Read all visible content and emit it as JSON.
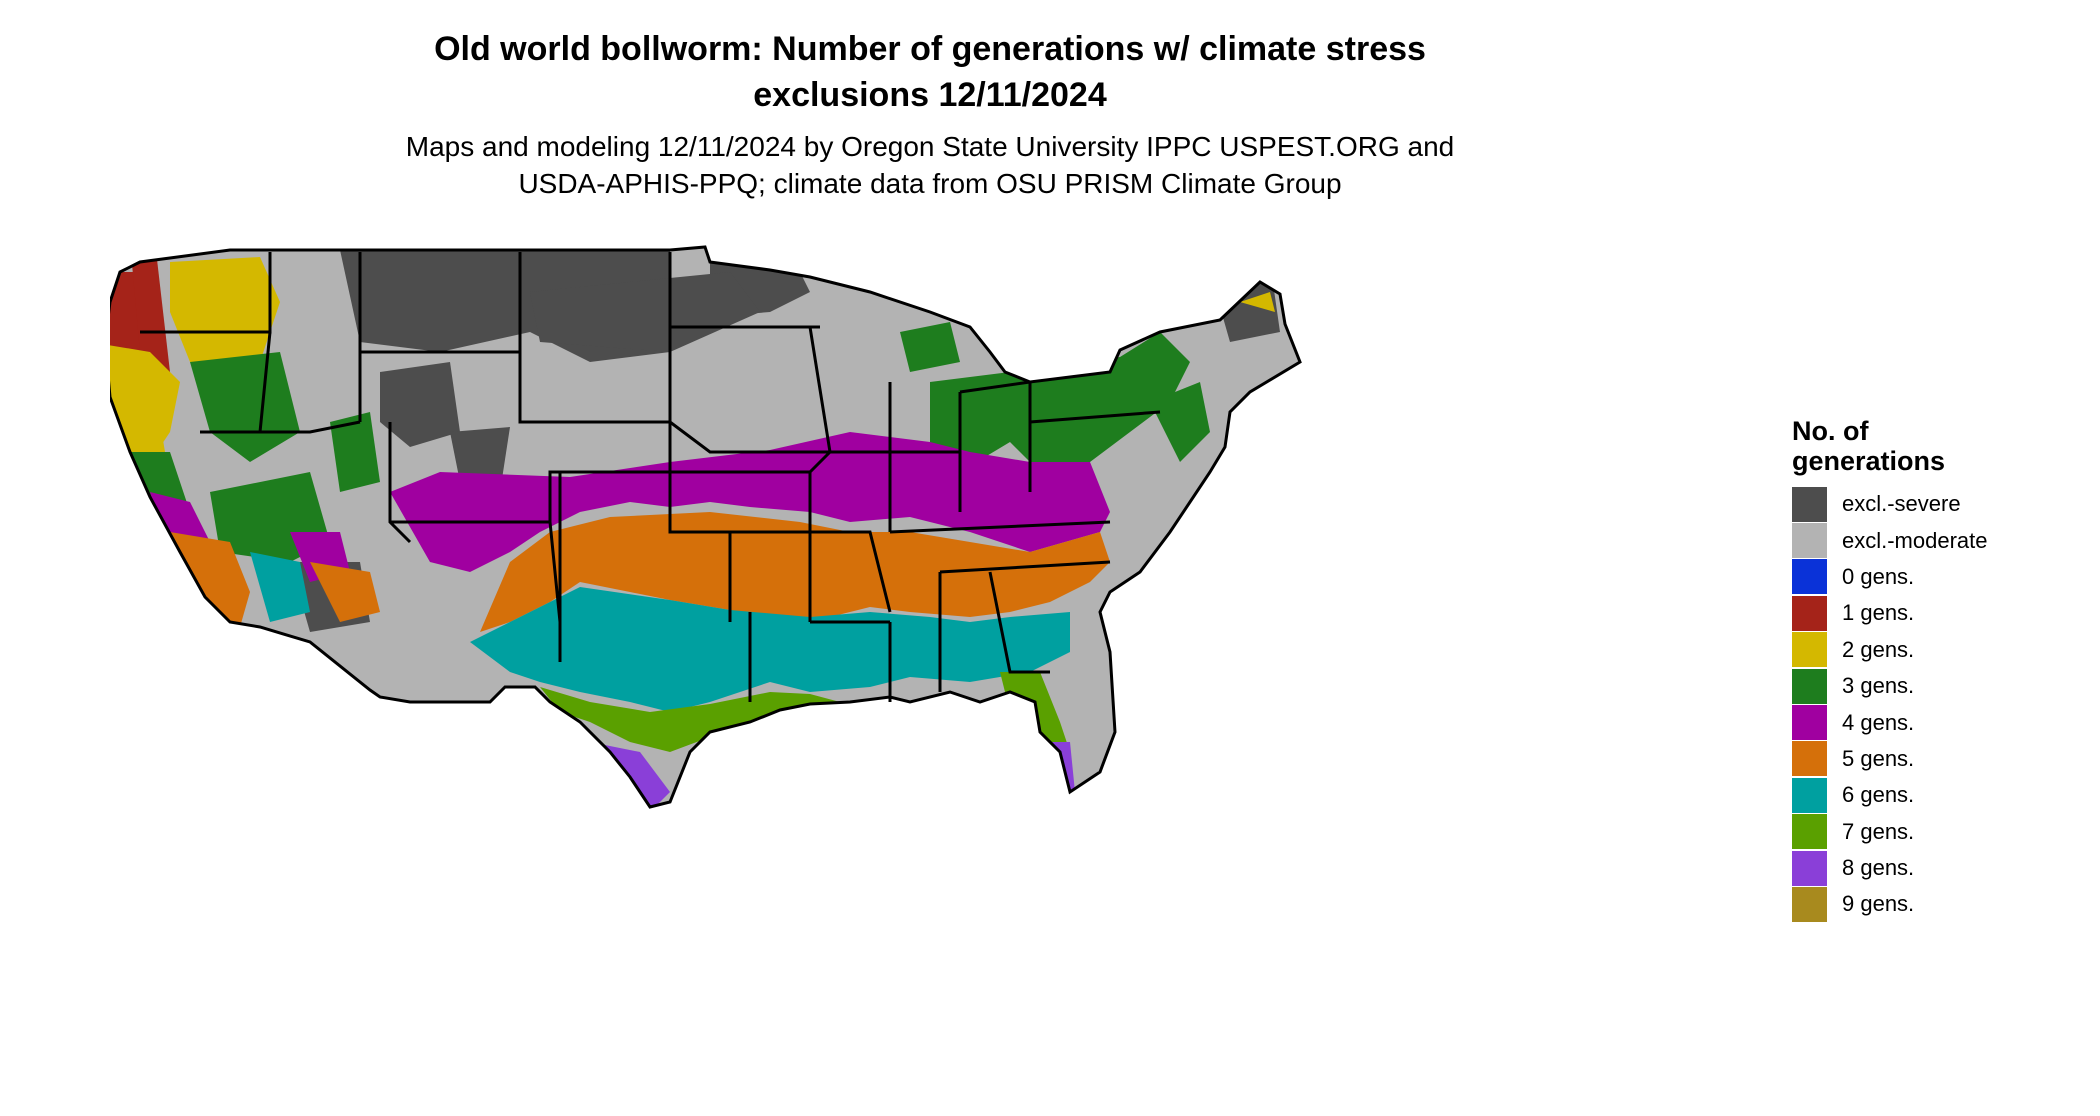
{
  "title_line1": "Old world bollworm: Number of generations w/ climate stress",
  "title_line2": "exclusions 12/11/2024",
  "subtitle_line1": "Maps and modeling 12/11/2024 by Oregon State University IPPC USPEST.ORG and",
  "subtitle_line2": "USDA-APHIS-PPQ; climate data from OSU PRISM Climate Group",
  "legend": {
    "title_line1": "No. of",
    "title_line2": "generations",
    "items": [
      {
        "label": "excl.-severe",
        "color": "#4d4d4d"
      },
      {
        "label": "excl.-moderate",
        "color": "#b3b3b3"
      },
      {
        "label": "0 gens.",
        "color": "#0a32d8"
      },
      {
        "label": "1 gens.",
        "color": "#a52319"
      },
      {
        "label": "2 gens.",
        "color": "#d4b800"
      },
      {
        "label": "3 gens.",
        "color": "#1e7d1e"
      },
      {
        "label": "4 gens.",
        "color": "#a000a0"
      },
      {
        "label": "5 gens.",
        "color": "#d5700a"
      },
      {
        "label": "6 gens.",
        "color": "#00a0a0"
      },
      {
        "label": "7 gens.",
        "color": "#5aa000"
      },
      {
        "label": "8 gens.",
        "color": "#8a3fd8"
      },
      {
        "label": "9 gens.",
        "color": "#a88a1e"
      }
    ]
  }
}
